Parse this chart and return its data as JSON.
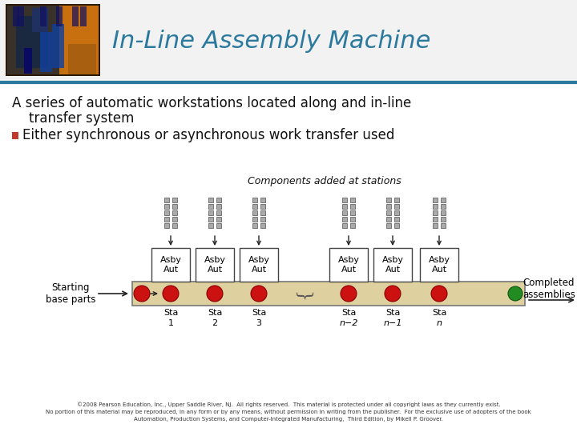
{
  "title": "In-Line Assembly Machine",
  "subtitle_line1": "A series of automatic workstations located along and in-line",
  "subtitle_line2": "    transfer system",
  "bullet": "Either synchronous or asynchronous work transfer used",
  "diagram_label": "Components added at stations",
  "left_label": "Starting\nbase parts",
  "right_label": "Completed\nassemblies",
  "stations": [
    {
      "label": "Asby\nAut",
      "sub1": "Sta",
      "sub2": "1"
    },
    {
      "label": "Asby\nAut",
      "sub1": "Sta",
      "sub2": "2"
    },
    {
      "label": "Asby\nAut",
      "sub1": "Sta",
      "sub2": "3"
    },
    {
      "label": "Asby\nAut",
      "sub1": "Sta",
      "sub2": "n−2"
    },
    {
      "label": "Asby\nAut",
      "sub1": "Sta",
      "sub2": "n−1"
    },
    {
      "label": "Asby\nAut",
      "sub1": "Sta",
      "sub2": "n"
    }
  ],
  "title_color": "#2B7A9E",
  "header_line_color": "#2B7A9E",
  "bullet_square_color": "#C0392B",
  "bg_color": "#FFFFFF",
  "belt_color": "#DFD0A0",
  "belt_border_color": "#777777",
  "station_box_color": "#FFFFFF",
  "station_border_color": "#444444",
  "red_circle_color": "#CC1111",
  "green_circle_color": "#228B22",
  "arrow_color": "#222222",
  "component_dot_color": "#AAAAAA",
  "component_dot_border": "#666666",
  "footer_text": "©2008 Pearson Education, Inc., Upper Saddle River, NJ.  All rights reserved.  This material is protected under all copyright laws as they currently exist.\nNo portion of this material may be reproduced, in any form or by any means, without permission in writing from the publisher.  For the exclusive use of adopters of the book\nAutomation, Production Systems, and Computer-Integrated Manufacturing,  Third Edition, by Mikell P. Groover.",
  "photo_colors": [
    "#3a2a0a",
    "#1a3050",
    "#4a6090",
    "#c07820",
    "#804010",
    "#d09030"
  ],
  "header_bg": "#F0F0F0"
}
